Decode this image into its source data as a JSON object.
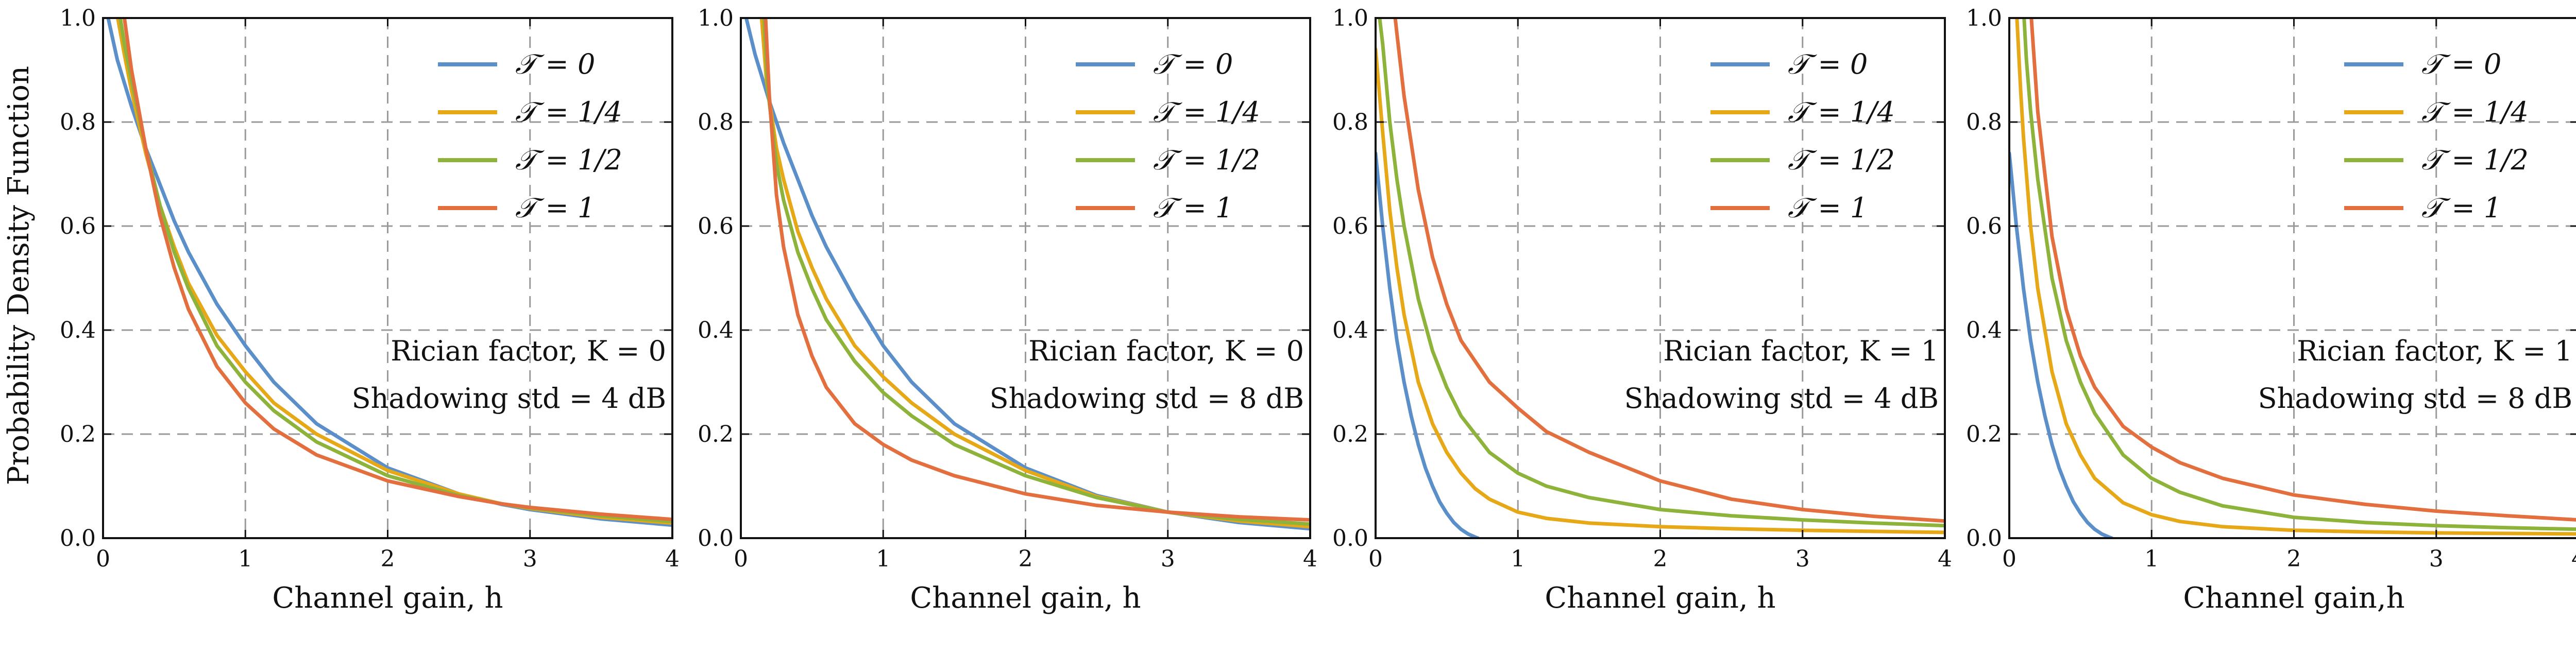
{
  "chart_data": [
    {
      "type": "line",
      "xlabel": "Channel gain, h",
      "ylabel": "Probability Density Function",
      "xlim": [
        0,
        4
      ],
      "ylim": [
        0,
        1.0
      ],
      "xticks": [
        "0",
        "1",
        "2",
        "3",
        "4"
      ],
      "yticks": [
        "0.0",
        "0.2",
        "0.4",
        "0.6",
        "0.8",
        "1.0"
      ],
      "grid": true,
      "legend_position": "top-right",
      "annotation": [
        "Rician factor, K = 0",
        "Shadowing std = 4 dB"
      ],
      "series": [
        {
          "name": "𝒯 = 0",
          "color": "#5b8fc9",
          "x": [
            0.02,
            0.1,
            0.2,
            0.3,
            0.4,
            0.5,
            0.6,
            0.8,
            1.0,
            1.2,
            1.5,
            2.0,
            2.5,
            2.8,
            3.0,
            3.5,
            4.0
          ],
          "y": [
            1.02,
            0.92,
            0.83,
            0.75,
            0.68,
            0.61,
            0.55,
            0.45,
            0.37,
            0.3,
            0.22,
            0.135,
            0.085,
            0.065,
            0.055,
            0.037,
            0.025
          ]
        },
        {
          "name": "𝒯 = 1/4",
          "color": "#e6a817",
          "x": [
            0.09,
            0.15,
            0.2,
            0.3,
            0.4,
            0.5,
            0.6,
            0.8,
            1.0,
            1.2,
            1.5,
            2.0,
            2.5,
            2.8,
            3.0,
            3.5,
            4.0
          ],
          "y": [
            1.02,
            0.93,
            0.86,
            0.74,
            0.64,
            0.56,
            0.49,
            0.39,
            0.32,
            0.26,
            0.2,
            0.13,
            0.085,
            0.066,
            0.057,
            0.04,
            0.029
          ]
        },
        {
          "name": "𝒯 = 1/2",
          "color": "#8db33a",
          "x": [
            0.11,
            0.15,
            0.2,
            0.3,
            0.4,
            0.5,
            0.6,
            0.8,
            1.0,
            1.2,
            1.5,
            2.0,
            2.5,
            2.8,
            3.0,
            3.5,
            4.0
          ],
          "y": [
            1.02,
            0.95,
            0.88,
            0.75,
            0.64,
            0.55,
            0.48,
            0.37,
            0.3,
            0.245,
            0.185,
            0.12,
            0.082,
            0.066,
            0.058,
            0.043,
            0.032
          ]
        },
        {
          "name": "𝒯 = 1",
          "color": "#e36f3f",
          "x": [
            0.14,
            0.2,
            0.3,
            0.4,
            0.5,
            0.6,
            0.8,
            1.0,
            1.2,
            1.5,
            2.0,
            2.5,
            2.8,
            3.0,
            3.5,
            4.0
          ],
          "y": [
            1.02,
            0.9,
            0.75,
            0.62,
            0.52,
            0.44,
            0.33,
            0.26,
            0.21,
            0.16,
            0.11,
            0.08,
            0.066,
            0.059,
            0.046,
            0.036
          ]
        }
      ]
    },
    {
      "type": "line",
      "xlabel": "Channel gain,  h",
      "ylabel": "",
      "xlim": [
        0,
        4
      ],
      "ylim": [
        0,
        1.0
      ],
      "xticks": [
        "0",
        "1",
        "2",
        "3",
        "4"
      ],
      "yticks": [
        "0.0",
        "0.2",
        "0.4",
        "0.6",
        "0.8",
        "1.0"
      ],
      "grid": true,
      "legend_position": "top-right",
      "annotation": [
        "Rician factor, K = 0",
        "Shadowing std = 8 dB"
      ],
      "series": [
        {
          "name": "𝒯 = 0",
          "color": "#5b8fc9",
          "x": [
            0.02,
            0.1,
            0.2,
            0.3,
            0.4,
            0.5,
            0.6,
            0.8,
            1.0,
            1.2,
            1.5,
            2.0,
            2.5,
            3.0,
            3.5,
            4.0
          ],
          "y": [
            1.02,
            0.93,
            0.84,
            0.76,
            0.69,
            0.62,
            0.56,
            0.46,
            0.37,
            0.3,
            0.22,
            0.135,
            0.082,
            0.05,
            0.03,
            0.018
          ]
        },
        {
          "name": "𝒯 = 1/4",
          "color": "#e6a817",
          "x": [
            0.14,
            0.18,
            0.25,
            0.3,
            0.4,
            0.5,
            0.6,
            0.8,
            1.0,
            1.2,
            1.5,
            2.0,
            2.5,
            3.0,
            3.5,
            4.0
          ],
          "y": [
            1.02,
            0.88,
            0.75,
            0.69,
            0.59,
            0.52,
            0.46,
            0.37,
            0.31,
            0.26,
            0.2,
            0.13,
            0.08,
            0.05,
            0.033,
            0.022
          ]
        },
        {
          "name": "𝒯 = 1/2",
          "color": "#8db33a",
          "x": [
            0.16,
            0.19,
            0.25,
            0.3,
            0.4,
            0.5,
            0.6,
            0.8,
            1.0,
            1.2,
            1.5,
            2.0,
            2.5,
            3.0,
            3.5,
            4.0
          ],
          "y": [
            1.02,
            0.86,
            0.72,
            0.65,
            0.55,
            0.48,
            0.42,
            0.34,
            0.28,
            0.235,
            0.18,
            0.12,
            0.078,
            0.05,
            0.036,
            0.027
          ]
        },
        {
          "name": "𝒯 = 1",
          "color": "#e36f3f",
          "x": [
            0.17,
            0.2,
            0.25,
            0.3,
            0.4,
            0.5,
            0.6,
            0.8,
            1.0,
            1.2,
            1.5,
            2.0,
            2.5,
            3.0,
            3.5,
            4.0
          ],
          "y": [
            1.02,
            0.85,
            0.66,
            0.56,
            0.43,
            0.35,
            0.29,
            0.22,
            0.18,
            0.15,
            0.12,
            0.085,
            0.063,
            0.05,
            0.041,
            0.035
          ]
        }
      ]
    },
    {
      "type": "line",
      "xlabel": "Channel gain, h",
      "ylabel": "",
      "xlim": [
        0,
        4
      ],
      "ylim": [
        0,
        1.0
      ],
      "xticks": [
        "0",
        "1",
        "2",
        "3",
        "4"
      ],
      "yticks": [
        "0.0",
        "0.2",
        "0.4",
        "0.6",
        "0.8",
        "1.0"
      ],
      "grid": true,
      "legend_position": "top-right",
      "annotation": [
        "Rician factor, K = 1",
        "Shadowing std = 4 dB"
      ],
      "series": [
        {
          "name": "𝒯 = 0",
          "color": "#5b8fc9",
          "x": [
            0.0,
            0.05,
            0.1,
            0.15,
            0.2,
            0.25,
            0.3,
            0.35,
            0.4,
            0.45,
            0.5,
            0.55,
            0.6,
            0.65,
            0.7,
            0.72
          ],
          "y": [
            0.74,
            0.6,
            0.48,
            0.38,
            0.3,
            0.235,
            0.18,
            0.135,
            0.1,
            0.07,
            0.048,
            0.03,
            0.017,
            0.008,
            0.002,
            0.0
          ]
        },
        {
          "name": "𝒯 = 1/4",
          "color": "#e6a817",
          "x": [
            0.0,
            0.05,
            0.1,
            0.15,
            0.2,
            0.3,
            0.4,
            0.5,
            0.6,
            0.7,
            0.8,
            1.0,
            1.2,
            1.5,
            2.0,
            2.5,
            3.0,
            3.5,
            4.0
          ],
          "y": [
            0.94,
            0.78,
            0.63,
            0.52,
            0.43,
            0.3,
            0.22,
            0.165,
            0.125,
            0.095,
            0.075,
            0.05,
            0.038,
            0.029,
            0.022,
            0.018,
            0.015,
            0.013,
            0.011
          ]
        },
        {
          "name": "𝒯 = 1/2",
          "color": "#8db33a",
          "x": [
            0.02,
            0.05,
            0.1,
            0.15,
            0.2,
            0.3,
            0.4,
            0.5,
            0.6,
            0.8,
            1.0,
            1.2,
            1.5,
            2.0,
            2.5,
            3.0,
            3.5,
            4.0
          ],
          "y": [
            1.02,
            0.95,
            0.8,
            0.69,
            0.6,
            0.46,
            0.36,
            0.29,
            0.235,
            0.165,
            0.125,
            0.1,
            0.078,
            0.055,
            0.043,
            0.035,
            0.029,
            0.024
          ]
        },
        {
          "name": "𝒯 = 1",
          "color": "#e36f3f",
          "x": [
            0.13,
            0.15,
            0.2,
            0.3,
            0.4,
            0.5,
            0.6,
            0.8,
            1.0,
            1.2,
            1.5,
            2.0,
            2.5,
            3.0,
            3.5,
            4.0
          ],
          "y": [
            1.02,
            0.97,
            0.85,
            0.67,
            0.54,
            0.45,
            0.38,
            0.3,
            0.25,
            0.205,
            0.165,
            0.11,
            0.075,
            0.055,
            0.042,
            0.033
          ]
        }
      ]
    },
    {
      "type": "line",
      "xlabel": "Channel gain,h",
      "ylabel": "",
      "xlim": [
        0,
        4
      ],
      "ylim": [
        0,
        1.0
      ],
      "xticks": [
        "0",
        "1",
        "2",
        "3",
        "4"
      ],
      "yticks": [
        "0.0",
        "0.2",
        "0.4",
        "0.6",
        "0.8",
        "1.0"
      ],
      "grid": true,
      "legend_position": "top-right",
      "annotation": [
        "Rician factor, K = 1",
        "Shadowing std = 8 dB"
      ],
      "series": [
        {
          "name": "𝒯 = 0",
          "color": "#5b8fc9",
          "x": [
            0.0,
            0.05,
            0.1,
            0.15,
            0.2,
            0.25,
            0.3,
            0.35,
            0.4,
            0.45,
            0.5,
            0.55,
            0.6,
            0.65,
            0.7,
            0.72
          ],
          "y": [
            0.74,
            0.6,
            0.48,
            0.38,
            0.3,
            0.235,
            0.18,
            0.135,
            0.1,
            0.07,
            0.048,
            0.03,
            0.017,
            0.008,
            0.002,
            0.0
          ]
        },
        {
          "name": "𝒯 = 1/4",
          "color": "#e6a817",
          "x": [
            0.05,
            0.08,
            0.1,
            0.15,
            0.2,
            0.3,
            0.4,
            0.5,
            0.6,
            0.8,
            1.0,
            1.2,
            1.5,
            2.0,
            2.5,
            3.0,
            3.5,
            4.0
          ],
          "y": [
            1.02,
            0.86,
            0.77,
            0.6,
            0.48,
            0.32,
            0.22,
            0.16,
            0.115,
            0.068,
            0.045,
            0.032,
            0.022,
            0.015,
            0.012,
            0.01,
            0.009,
            0.008
          ]
        },
        {
          "name": "𝒯 = 1/2",
          "color": "#8db33a",
          "x": [
            0.1,
            0.12,
            0.15,
            0.2,
            0.3,
            0.4,
            0.5,
            0.6,
            0.8,
            1.0,
            1.2,
            1.5,
            2.0,
            2.5,
            3.0,
            3.5,
            4.0
          ],
          "y": [
            1.02,
            0.92,
            0.82,
            0.69,
            0.5,
            0.38,
            0.3,
            0.24,
            0.16,
            0.115,
            0.088,
            0.062,
            0.04,
            0.03,
            0.024,
            0.02,
            0.017
          ]
        },
        {
          "name": "𝒯 = 1",
          "color": "#e36f3f",
          "x": [
            0.15,
            0.2,
            0.3,
            0.4,
            0.5,
            0.6,
            0.8,
            1.0,
            1.2,
            1.5,
            2.0,
            2.5,
            3.0,
            3.5,
            4.0
          ],
          "y": [
            1.02,
            0.82,
            0.58,
            0.44,
            0.35,
            0.29,
            0.215,
            0.175,
            0.145,
            0.115,
            0.083,
            0.065,
            0.052,
            0.043,
            0.035
          ]
        }
      ]
    }
  ]
}
